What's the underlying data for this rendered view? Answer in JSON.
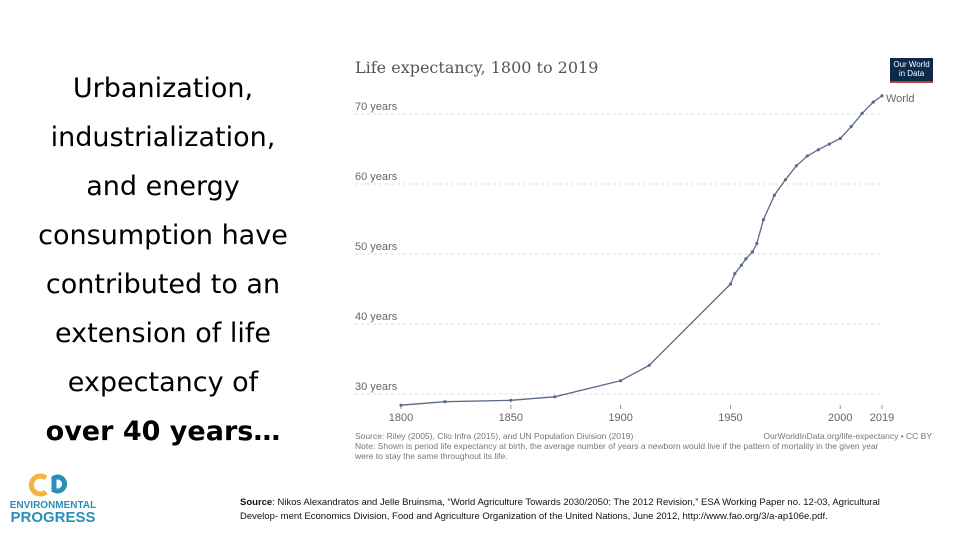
{
  "slide_text": {
    "lines": [
      "Urbanization,",
      "industrialization,",
      "and energy",
      "consumption have",
      "contributed to an",
      "extension of life",
      "expectancy of"
    ],
    "bold_line": "over 40 years…"
  },
  "logo": {
    "line1": "ENVIRONMENTAL",
    "line2": "PROGRESS"
  },
  "source": {
    "label": "Source",
    "lines": [
      ": Nikos Alexandratos and Jelle Bruinsma, “World Agriculture Towards 2030/2050: The 2012 Revision,” ESA Working Paper no. 12-03, Agricultural",
      "Develop- ment Economics Division, Food and Agriculture Organization of the United Nations, June 2012, http://www.fao.org/3/a-ap106e.pdf."
    ]
  },
  "chart_data": {
    "type": "line",
    "title": "Life expectancy, 1800 to 2019",
    "brand": [
      "Our World",
      "in Data"
    ],
    "x": [
      1800,
      1820,
      1850,
      1870,
      1900,
      1913,
      1950,
      1952,
      1955,
      1957,
      1960,
      1962,
      1965,
      1970,
      1975,
      1980,
      1985,
      1990,
      1995,
      2000,
      2005,
      2010,
      2015,
      2019
    ],
    "series": [
      {
        "name": "World",
        "color": "#5b6a86",
        "values": [
          28.4,
          28.9,
          29.1,
          29.6,
          31.9,
          34.1,
          45.7,
          47.2,
          48.4,
          49.3,
          50.3,
          51.5,
          54.9,
          58.4,
          60.6,
          62.6,
          64.0,
          64.9,
          65.7,
          66.5,
          68.2,
          70.1,
          71.7,
          72.6
        ]
      }
    ],
    "xlim": [
      1800,
      2019
    ],
    "xticks": [
      1800,
      1850,
      1900,
      1950,
      2000,
      2019
    ],
    "ylim": [
      30,
      70
    ],
    "yticks": [
      {
        "value": 30,
        "label": "30 years"
      },
      {
        "value": 40,
        "label": "40 years"
      },
      {
        "value": 50,
        "label": "50 years"
      },
      {
        "value": 60,
        "label": "60 years"
      },
      {
        "value": 70,
        "label": "70 years"
      }
    ],
    "grid": true,
    "source_note": "Source: Riley (2005), Clio Infra (2015), and UN Population Division (2019)",
    "url_note": "OurWorldInData.org/life-expectancy • CC BY",
    "notes": [
      "Note: Shown is period life expectancy at birth, the average number of years a newborn would live if the pattern of mortality in the given year",
      "were to stay the same throughout its life."
    ]
  }
}
